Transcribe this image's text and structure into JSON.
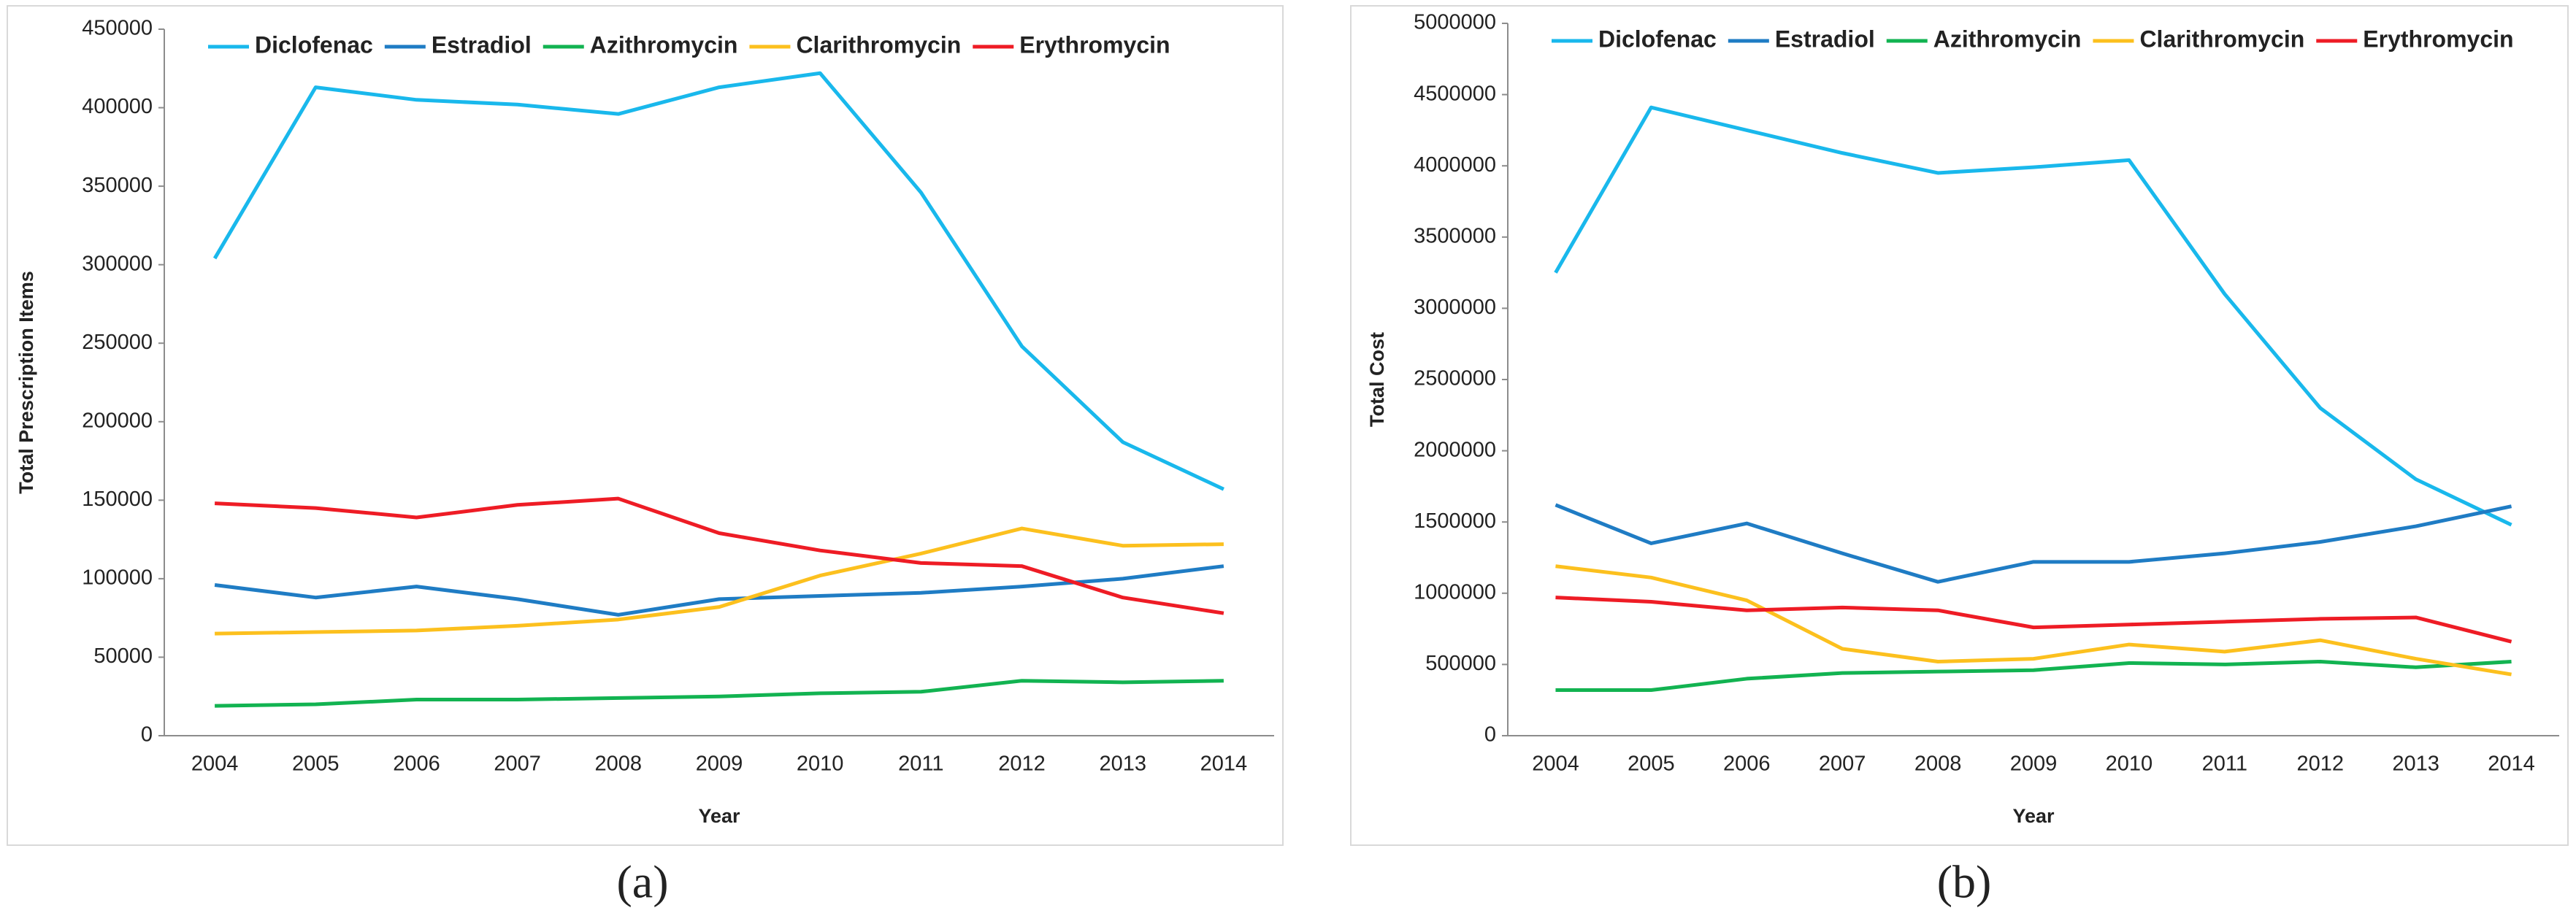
{
  "chart_data": [
    {
      "type": "line",
      "y_label": "Total Prescription Items",
      "x_label": "Year",
      "caption": "(a)",
      "categories": [
        "2004",
        "2005",
        "2006",
        "2007",
        "2008",
        "2009",
        "2010",
        "2011",
        "2012",
        "2013",
        "2014"
      ],
      "ylim": [
        0,
        450000
      ],
      "yticks": [
        0,
        50000,
        100000,
        150000,
        200000,
        250000,
        300000,
        350000,
        400000,
        450000
      ],
      "grid": false,
      "legend": "top",
      "series": [
        {
          "name": "Diclofenac",
          "color": "#19b8ec",
          "values": [
            304000,
            413000,
            405000,
            402000,
            396000,
            413000,
            422000,
            346000,
            248000,
            187000,
            157000
          ]
        },
        {
          "name": "Estradiol",
          "color": "#1f7cc4",
          "values": [
            96000,
            88000,
            95000,
            87000,
            77000,
            87000,
            89000,
            91000,
            95000,
            100000,
            108000
          ]
        },
        {
          "name": "Azithromycin",
          "color": "#12b351",
          "values": [
            19000,
            20000,
            23000,
            23000,
            24000,
            25000,
            27000,
            28000,
            35000,
            34000,
            35000
          ]
        },
        {
          "name": "Clarithromycin",
          "color": "#fcc01e",
          "values": [
            65000,
            66000,
            67000,
            70000,
            74000,
            82000,
            102000,
            116000,
            132000,
            121000,
            122000
          ]
        },
        {
          "name": "Erythromycin",
          "color": "#ee1c25",
          "values": [
            148000,
            145000,
            139000,
            147000,
            151000,
            129000,
            118000,
            110000,
            108000,
            88000,
            78000
          ]
        }
      ]
    },
    {
      "type": "line",
      "y_label": "Total Cost",
      "x_label": "Year",
      "caption": "(b)",
      "categories": [
        "2004",
        "2005",
        "2006",
        "2007",
        "2008",
        "2009",
        "2010",
        "2011",
        "2012",
        "2013",
        "2014"
      ],
      "ylim": [
        0,
        5000000
      ],
      "yticks": [
        0,
        500000,
        1000000,
        1500000,
        2000000,
        2500000,
        3000000,
        3500000,
        4000000,
        4500000,
        5000000
      ],
      "grid": false,
      "legend": "top",
      "series": [
        {
          "name": "Diclofenac",
          "color": "#19b8ec",
          "values": [
            3250000,
            4410000,
            4250000,
            4090000,
            3950000,
            3990000,
            4040000,
            3100000,
            2300000,
            1800000,
            1480000
          ]
        },
        {
          "name": "Estradiol",
          "color": "#1f7cc4",
          "values": [
            1620000,
            1350000,
            1490000,
            1280000,
            1080000,
            1220000,
            1220000,
            1280000,
            1360000,
            1470000,
            1610000
          ]
        },
        {
          "name": "Azithromycin",
          "color": "#12b351",
          "values": [
            320000,
            320000,
            400000,
            440000,
            450000,
            460000,
            510000,
            500000,
            520000,
            480000,
            520000
          ]
        },
        {
          "name": "Clarithromycin",
          "color": "#fcc01e",
          "values": [
            1190000,
            1110000,
            950000,
            610000,
            520000,
            540000,
            640000,
            590000,
            670000,
            540000,
            430000
          ]
        },
        {
          "name": "Erythromycin",
          "color": "#ee1c25",
          "values": [
            970000,
            940000,
            880000,
            900000,
            880000,
            760000,
            780000,
            800000,
            820000,
            830000,
            660000
          ]
        }
      ]
    }
  ]
}
